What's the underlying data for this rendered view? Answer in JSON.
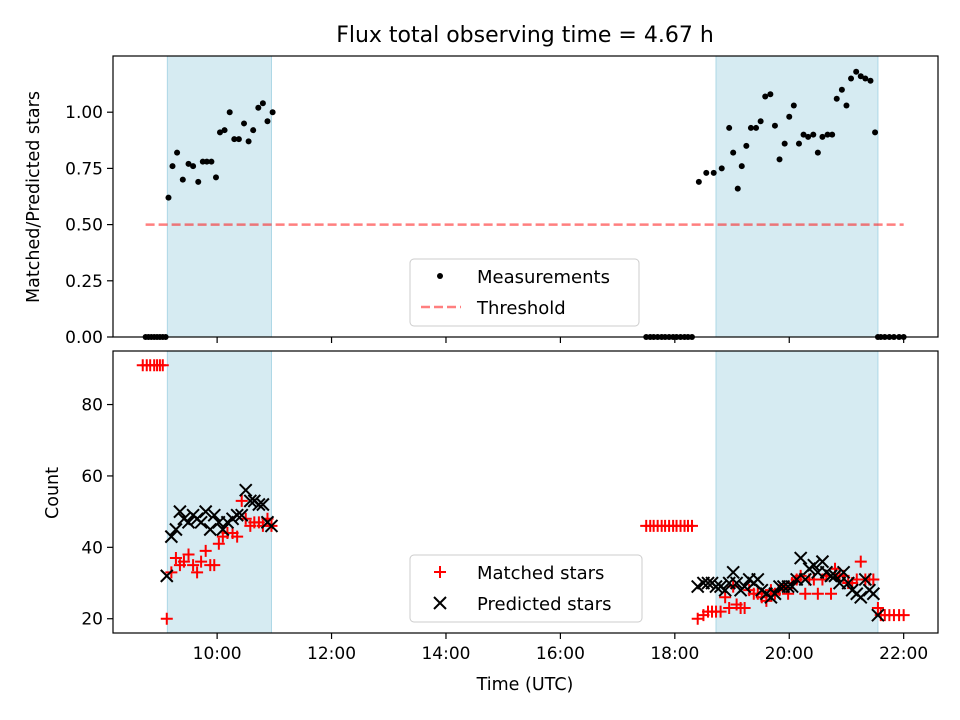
{
  "colors": {
    "shade": "#add8e6",
    "measurement": "#000000",
    "threshold": "#ff0000",
    "matched": "#ff0000",
    "predicted": "#000000"
  },
  "chart_data": [
    {
      "type": "scatter",
      "title": "Flux total observing time = 4.67 h",
      "xlabel": "",
      "ylabel": "Matched/Predicted stars",
      "xlim": [
        8.18,
        22.6
      ],
      "ylim": [
        0.0,
        1.25
      ],
      "yticks": [
        {
          "value": 0.0,
          "label": "0.00"
        },
        {
          "value": 0.25,
          "label": "0.25"
        },
        {
          "value": 0.5,
          "label": "0.50"
        },
        {
          "value": 0.75,
          "label": "0.75"
        },
        {
          "value": 1.0,
          "label": "1.00"
        }
      ],
      "xticks": [
        10,
        12,
        14,
        16,
        18,
        20,
        22
      ],
      "shaded_intervals": [
        [
          9.13,
          10.95
        ],
        [
          18.72,
          21.55
        ]
      ],
      "legend": {
        "placement": "lower-center",
        "entries": [
          "Measurements",
          "Threshold"
        ]
      },
      "threshold": {
        "name": "Threshold",
        "value": 0.5,
        "x_range": [
          8.75,
          22.0
        ]
      },
      "series": [
        {
          "name": "Measurements",
          "x": [
            8.75,
            8.8,
            8.85,
            8.9,
            8.95,
            9.0,
            9.05,
            9.1,
            9.15,
            9.22,
            9.3,
            9.4,
            9.5,
            9.58,
            9.67,
            9.75,
            9.82,
            9.9,
            9.98,
            10.05,
            10.13,
            10.22,
            10.3,
            10.38,
            10.47,
            10.55,
            10.63,
            10.72,
            10.8,
            10.88,
            10.97,
            17.5,
            17.57,
            17.63,
            17.7,
            17.77,
            17.83,
            17.9,
            17.97,
            18.03,
            18.1,
            18.17,
            18.23,
            18.3,
            18.42,
            18.55,
            18.68,
            18.82,
            18.95,
            19.02,
            19.1,
            19.17,
            19.25,
            19.33,
            19.42,
            19.5,
            19.58,
            19.67,
            19.75,
            19.83,
            19.92,
            20.0,
            20.08,
            20.17,
            20.25,
            20.33,
            20.42,
            20.5,
            20.58,
            20.67,
            20.75,
            20.83,
            20.92,
            21.0,
            21.08,
            21.17,
            21.25,
            21.33,
            21.42,
            21.5,
            21.55,
            21.6,
            21.67,
            21.75,
            21.83,
            21.92,
            22.0
          ],
          "y": [
            0.0,
            0.0,
            0.0,
            0.0,
            0.0,
            0.0,
            0.0,
            0.0,
            0.62,
            0.76,
            0.82,
            0.7,
            0.77,
            0.76,
            0.69,
            0.78,
            0.78,
            0.78,
            0.71,
            0.91,
            0.92,
            1.0,
            0.88,
            0.88,
            0.95,
            0.87,
            0.92,
            1.02,
            1.04,
            0.96,
            1.0,
            0.0,
            0.0,
            0.0,
            0.0,
            0.0,
            0.0,
            0.0,
            0.0,
            0.0,
            0.0,
            0.0,
            0.0,
            0.0,
            0.69,
            0.73,
            0.73,
            0.75,
            0.93,
            0.82,
            0.66,
            0.76,
            0.85,
            0.93,
            0.93,
            0.96,
            1.07,
            1.08,
            0.94,
            0.79,
            0.86,
            0.98,
            1.03,
            0.86,
            0.9,
            0.89,
            0.9,
            0.82,
            0.89,
            0.9,
            0.9,
            1.06,
            1.1,
            1.03,
            1.15,
            1.18,
            1.16,
            1.15,
            1.14,
            0.91,
            0.0,
            0.0,
            0.0,
            0.0,
            0.0,
            0.0,
            0.0
          ]
        }
      ]
    },
    {
      "type": "scatter",
      "title": "",
      "xlabel": "Time (UTC)",
      "ylabel": "Count",
      "xlim": [
        8.18,
        22.6
      ],
      "ylim": [
        16.0,
        95.0
      ],
      "yticks": [
        {
          "value": 20,
          "label": "20"
        },
        {
          "value": 40,
          "label": "40"
        },
        {
          "value": 60,
          "label": "60"
        },
        {
          "value": 80,
          "label": "80"
        }
      ],
      "xticks": [
        {
          "value": 10,
          "label": "10:00"
        },
        {
          "value": 12,
          "label": "12:00"
        },
        {
          "value": 14,
          "label": "14:00"
        },
        {
          "value": 16,
          "label": "16:00"
        },
        {
          "value": 18,
          "label": "18:00"
        },
        {
          "value": 20,
          "label": "20:00"
        },
        {
          "value": 22,
          "label": "22:00"
        }
      ],
      "shaded_intervals": [
        [
          9.13,
          10.95
        ],
        [
          18.72,
          21.55
        ]
      ],
      "legend": {
        "placement": "lower-center",
        "entries": [
          "Matched stars",
          "Predicted stars"
        ]
      },
      "series": [
        {
          "name": "Matched stars",
          "marker": "plus",
          "x": [
            8.7,
            8.77,
            8.83,
            8.9,
            8.95,
            9.0,
            9.05,
            9.12,
            9.2,
            9.28,
            9.35,
            9.42,
            9.5,
            9.58,
            9.65,
            9.72,
            9.8,
            9.88,
            9.95,
            10.03,
            10.1,
            10.18,
            10.27,
            10.35,
            10.43,
            10.5,
            10.58,
            10.65,
            10.73,
            10.8,
            10.88,
            10.95,
            17.5,
            17.57,
            17.63,
            17.7,
            17.77,
            17.83,
            17.9,
            17.97,
            18.03,
            18.1,
            18.17,
            18.23,
            18.3,
            18.4,
            18.5,
            18.58,
            18.65,
            18.72,
            18.8,
            18.88,
            18.95,
            19.02,
            19.08,
            19.15,
            19.22,
            19.3,
            19.38,
            19.45,
            19.52,
            19.6,
            19.68,
            19.75,
            19.83,
            19.9,
            19.98,
            20.05,
            20.13,
            20.2,
            20.28,
            20.35,
            20.43,
            20.5,
            20.58,
            20.65,
            20.73,
            20.8,
            20.88,
            20.95,
            21.03,
            21.1,
            21.18,
            21.25,
            21.33,
            21.4,
            21.47,
            21.55,
            21.6,
            21.67,
            21.75,
            21.83,
            21.92,
            22.0
          ],
          "y": [
            91,
            91,
            91,
            91,
            91,
            91,
            91,
            20,
            33,
            37,
            35,
            36,
            38,
            35,
            33,
            36,
            39,
            35,
            35,
            41,
            43,
            44,
            44,
            43,
            53,
            48,
            46,
            47,
            47,
            46,
            48,
            46,
            46,
            46,
            46,
            46,
            46,
            46,
            46,
            46,
            46,
            46,
            46,
            46,
            46,
            20,
            21,
            22,
            22,
            22,
            22,
            26,
            23,
            29,
            24,
            23,
            23,
            28,
            27,
            27,
            26,
            25,
            28,
            27,
            28,
            29,
            27,
            30,
            31,
            32,
            27,
            31,
            31,
            27,
            31,
            32,
            27,
            34,
            32,
            32,
            30,
            30,
            31,
            36,
            31,
            31,
            31,
            23,
            21,
            21,
            21,
            21,
            21,
            21
          ]
        },
        {
          "name": "Predicted stars",
          "marker": "x",
          "x": [
            9.12,
            9.2,
            9.28,
            9.35,
            9.42,
            9.5,
            9.58,
            9.65,
            9.72,
            9.8,
            9.88,
            9.95,
            10.03,
            10.1,
            10.18,
            10.27,
            10.35,
            10.43,
            10.5,
            10.58,
            10.65,
            10.73,
            10.8,
            10.88,
            10.95,
            18.4,
            18.5,
            18.58,
            18.65,
            18.72,
            18.8,
            18.88,
            18.95,
            19.02,
            19.08,
            19.15,
            19.22,
            19.3,
            19.38,
            19.45,
            19.52,
            19.6,
            19.68,
            19.75,
            19.83,
            19.9,
            19.98,
            20.05,
            20.13,
            20.2,
            20.28,
            20.35,
            20.43,
            20.5,
            20.58,
            20.65,
            20.73,
            20.8,
            20.88,
            20.95,
            21.03,
            21.1,
            21.18,
            21.25,
            21.33,
            21.4,
            21.47,
            21.55
          ],
          "y": [
            32,
            43,
            45,
            50,
            48,
            47,
            49,
            48,
            47,
            50,
            45,
            49,
            47,
            45,
            47,
            48,
            49,
            49,
            56,
            53,
            53,
            52,
            52,
            47,
            46,
            29,
            30,
            30,
            30,
            29,
            29,
            28,
            30,
            33,
            30,
            28,
            29,
            31,
            30,
            31,
            28,
            27,
            26,
            27,
            29,
            29,
            29,
            29,
            31,
            37,
            31,
            34,
            35,
            33,
            36,
            33,
            32,
            32,
            30,
            33,
            30,
            28,
            27,
            26,
            31,
            28,
            27,
            21
          ]
        }
      ]
    }
  ]
}
